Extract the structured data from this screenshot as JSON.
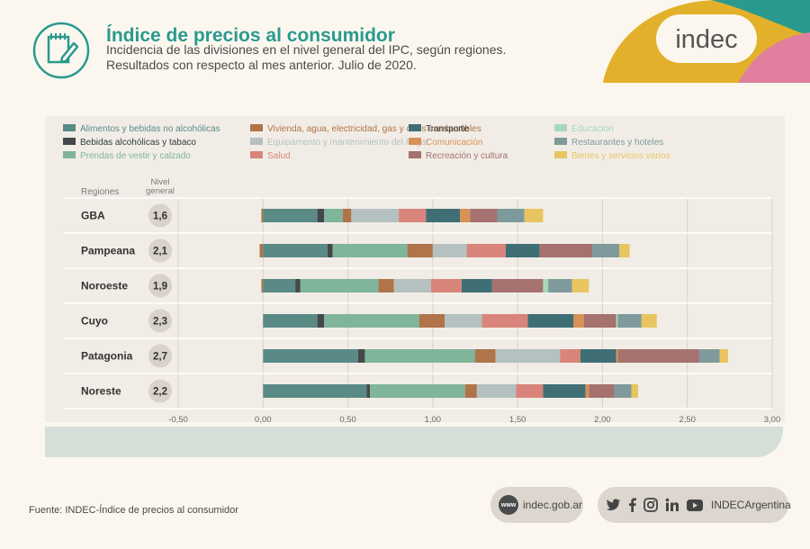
{
  "header": {
    "title": "Índice de precios al consumidor",
    "subtitle_line1": "Incidencia de las divisiones en el nivel general del IPC, según regiones.",
    "subtitle_line2": "Resultados con respecto al mes anterior. Julio de 2020.",
    "brand": "indec"
  },
  "colors": {
    "title": "#2a9a8e",
    "corner_yellow": "#e2b02a",
    "corner_teal": "#2a9a8e",
    "corner_pink": "#e07f9e"
  },
  "footer": {
    "source": "Fuente: INDEC-Índice de precios al consumidor",
    "website": "indec.gob.ar",
    "www_label": "www",
    "social_handle": "INDECArgentina",
    "social_icons": [
      "twitter-icon",
      "facebook-icon",
      "instagram-icon",
      "linkedin-icon",
      "youtube-icon"
    ]
  },
  "chart_data": {
    "type": "bar",
    "orientation": "horizontal",
    "stacked": true,
    "column_headers": {
      "regions": "Regiones",
      "general_line1": "Nivel",
      "general_line2": "general"
    },
    "categories": [
      "GBA",
      "Pampeana",
      "Noroeste",
      "Cuyo",
      "Patagonia",
      "Noreste"
    ],
    "general_level": [
      "1,6",
      "2,1",
      "1,9",
      "2,3",
      "2,7",
      "2,2"
    ],
    "xlim": [
      -0.5,
      3.0
    ],
    "x_ticks": [
      -0.5,
      0,
      0.5,
      1.0,
      1.5,
      2.0,
      2.5,
      3.0
    ],
    "x_tick_labels": [
      "-0,50",
      "0,00",
      "0,50",
      "1,00",
      "1,50",
      "2,00",
      "2,50",
      "3,00"
    ],
    "series": [
      {
        "name": "Alimentos y bebidas no alcohólicas",
        "color": "#5a8a86",
        "values": [
          0.32,
          0.38,
          0.19,
          0.32,
          0.56,
          0.61
        ]
      },
      {
        "name": "Bebidas alcohólicas y tabaco",
        "color": "#44484a",
        "values": [
          0.04,
          0.03,
          0.03,
          0.04,
          0.04,
          0.02
        ]
      },
      {
        "name": "Prendas de vestir y calzado",
        "color": "#7fb59a",
        "values": [
          0.11,
          0.44,
          0.46,
          0.56,
          0.65,
          0.56
        ]
      },
      {
        "name": "Vivienda, agua, electricidad, gas y otros combustibles",
        "color": "#b0734a",
        "values": [
          0.05,
          0.15,
          0.09,
          0.15,
          0.12,
          0.07
        ]
      },
      {
        "name": "Equipamento y mantenimiento del hogar",
        "color": "#b5c1c0",
        "values": [
          0.28,
          0.2,
          0.22,
          0.22,
          0.38,
          0.23
        ]
      },
      {
        "name": "Salud",
        "color": "#d9847a",
        "values": [
          0.16,
          0.23,
          0.18,
          0.27,
          0.12,
          0.16
        ]
      },
      {
        "name": "Transporte",
        "color": "#3f6f75",
        "values": [
          0.2,
          0.2,
          0.18,
          0.27,
          0.21,
          0.25
        ]
      },
      {
        "name": "Comunicación",
        "color": "#d99156",
        "values": [
          0.06,
          0.0,
          0.0,
          0.06,
          0.01,
          0.02
        ]
      },
      {
        "name": "Recreación y cultura",
        "color": "#a57270",
        "values": [
          0.16,
          0.31,
          0.3,
          0.19,
          0.48,
          0.15
        ]
      },
      {
        "name": "Educación",
        "color": "#a7d7b8",
        "values": [
          0.0,
          0.0,
          0.03,
          0.01,
          0.0,
          0.0
        ]
      },
      {
        "name": "Restaurantes y hoteles",
        "color": "#7e9a9c",
        "values": [
          0.16,
          0.16,
          0.14,
          0.14,
          0.12,
          0.1
        ]
      },
      {
        "name": "Bienes y servicios varios",
        "color": "#e8c560",
        "values": [
          0.11,
          0.06,
          0.1,
          0.09,
          0.05,
          0.04
        ]
      }
    ],
    "negative_offset": [
      -0.01,
      -0.02,
      -0.01,
      0.0,
      0.0,
      0.0
    ]
  }
}
